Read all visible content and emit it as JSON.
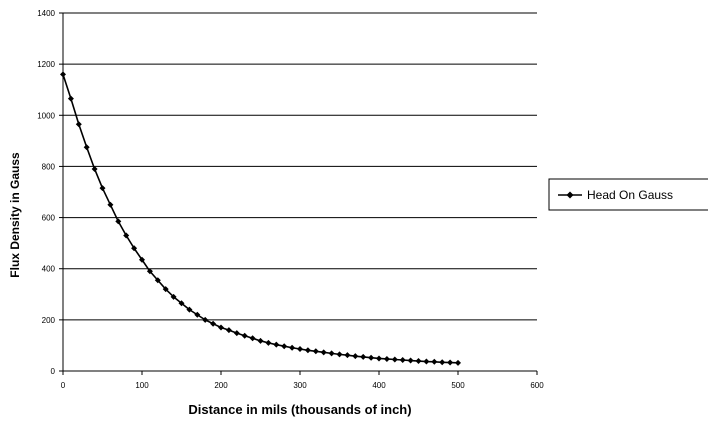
{
  "chart_data": {
    "type": "line",
    "xlabel": "Distance in mils (thousands of inch)",
    "ylabel": "Flux Density in Gauss",
    "xlim": [
      0,
      600
    ],
    "ylim": [
      0,
      1400
    ],
    "x_ticks": [
      "0",
      "100",
      "200",
      "300",
      "400",
      "500",
      "600"
    ],
    "y_ticks": [
      "0",
      "200",
      "400",
      "600",
      "800",
      "1000",
      "1200",
      "1400"
    ],
    "grid": "horizontal",
    "legend_position": "right",
    "series": [
      {
        "name": "Head On Gauss",
        "color": "#000000",
        "marker": "diamond",
        "x": [
          0,
          10,
          20,
          30,
          40,
          50,
          60,
          70,
          80,
          90,
          100,
          110,
          120,
          130,
          140,
          150,
          160,
          170,
          180,
          190,
          200,
          210,
          220,
          230,
          240,
          250,
          260,
          270,
          280,
          290,
          300,
          310,
          320,
          330,
          340,
          350,
          360,
          370,
          380,
          390,
          400,
          410,
          420,
          430,
          440,
          450,
          460,
          470,
          480,
          490,
          500
        ],
        "values": [
          1160,
          1065,
          965,
          875,
          790,
          715,
          650,
          585,
          530,
          480,
          435,
          390,
          355,
          320,
          290,
          265,
          240,
          220,
          200,
          185,
          170,
          160,
          148,
          138,
          128,
          118,
          110,
          103,
          97,
          91,
          86,
          81,
          77,
          73,
          69,
          65,
          62,
          58,
          55,
          52,
          49,
          47,
          45,
          43,
          41,
          39,
          37,
          36,
          34,
          33,
          32
        ]
      }
    ]
  }
}
